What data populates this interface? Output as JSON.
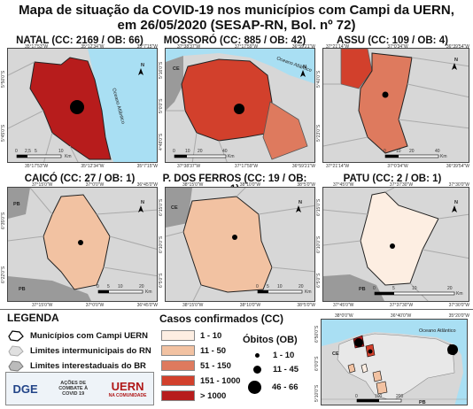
{
  "title_line1": "Mapa de situação da COVID-19 nos municípios com Campi da UERN,",
  "title_line2": "em 26/05/2020 (SESAP-RN, Bol. nº 72)",
  "panels": [
    {
      "title": "NATAL (CC: 2169 / OB: 66)",
      "coords_top": [
        "35°17'53\"W",
        "35°12'34\"W",
        "35°7'15\"W"
      ],
      "coords_bottom": [
        "35°17'53\"W",
        "35°12'34\"W",
        "35°7'15\"W"
      ],
      "coords_left": [
        "5°45'0\"S",
        "5°50'0\"S"
      ],
      "scale": [
        "0",
        "2,5",
        "5",
        "10"
      ],
      "scale_unit": "Km",
      "water_label": "Oceano Atlântico",
      "north": "N",
      "fill": "#b71c1c"
    },
    {
      "title": "MOSSORÓ (CC: 885 / OB: 42)",
      "coords_top": [
        "37°38'37\"W",
        "37°17'59\"W",
        "36°59'21\"W"
      ],
      "coords_bottom": [
        "37°38'37\"W",
        "37°17'59\"W",
        "36°59'21\"W"
      ],
      "coords_left": [
        "4°48'0\"S",
        "5°0'0\"S",
        "5°16'0\"S"
      ],
      "scale": [
        "0",
        "10",
        "20",
        "40"
      ],
      "scale_unit": "Km",
      "water_label": "Oceano Atlântico",
      "state_label": "CE",
      "north": "N",
      "fill": "#d2402c"
    },
    {
      "title": "ASSU (CC: 109 / OB: 4)",
      "coords_top": [
        "37°21'14\"W",
        "37°0'34\"W",
        "36°39'54\"W"
      ],
      "coords_bottom": [
        "37°21'14\"W",
        "37°0'34\"W",
        "36°39'54\"W"
      ],
      "coords_left": [
        "5°23'0\"S",
        "5°40'0\"S"
      ],
      "scale": [
        "0",
        "10",
        "20",
        "40"
      ],
      "scale_unit": "Km",
      "north": "N",
      "fill": "#de7a5e"
    },
    {
      "title": "CAICÓ (CC: 27 / OB: 1)",
      "coords_top": [
        "37°15'0\"W",
        "37°0'0\"W",
        "36°45'0\"W"
      ],
      "coords_bottom": [
        "37°15'0\"W",
        "37°0'0\"W",
        "36°45'0\"W"
      ],
      "coords_left": [
        "6°22'0\"S",
        "6°35'0\"S"
      ],
      "scale": [
        "0",
        "5",
        "10",
        "20"
      ],
      "scale_unit": "Km",
      "state_label": "PB",
      "state_label2": "PB",
      "north": "N",
      "fill": "#f2c2a2"
    },
    {
      "title": "P. DOS FERROS (CC: 19 / OB: 1)",
      "coords_top": [
        "38°15'0\"W",
        "38°10'0\"W",
        "38°5'0\"W"
      ],
      "coords_bottom": [
        "38°15'0\"W",
        "38°10'0\"W",
        "38°5'0\"W"
      ],
      "coords_left": [
        "6°5'0\"S",
        "6°10'0\"S",
        "6°15'0\"S"
      ],
      "scale": [
        "0",
        "5",
        "10",
        "20"
      ],
      "scale_unit": "Km",
      "state_label": "CE",
      "north": "N",
      "fill": "#f2c2a2"
    },
    {
      "title": "PATU (CC: 2 / OB: 1)",
      "coords_top": [
        "37°45'0\"W",
        "37°37'30\"W",
        "37°30'0\"W"
      ],
      "coords_bottom": [
        "37°45'0\"W",
        "37°37'30\"W",
        "37°30'0\"W"
      ],
      "coords_left": [
        "6°5'0\"S",
        "6°10'0\"S",
        "6°15'0\"S"
      ],
      "scale": [
        "0",
        "5",
        "10",
        "20"
      ],
      "scale_unit": "Km",
      "state_label": "PB",
      "north": "N",
      "fill": "#fdeee2"
    }
  ],
  "legend": {
    "title": "LEGENDA",
    "items": [
      "Municípios com Campi UERN",
      "Limites intermunicipais do RN",
      "Limites interestaduais do BR"
    ]
  },
  "cases": {
    "title": "Casos confirmados (CC)",
    "classes": [
      {
        "label": "1 - 10",
        "color": "#fdeee2"
      },
      {
        "label": "11 - 50",
        "color": "#f2c2a2"
      },
      {
        "label": "51 - 150",
        "color": "#de7a5e"
      },
      {
        "label": "151 - 1000",
        "color": "#d2402c"
      },
      {
        "label": "> 1000",
        "color": "#b71c1c"
      }
    ]
  },
  "deaths": {
    "title": "Óbitos (OB)",
    "classes": [
      "1 - 10",
      "11 - 45",
      "46 - 66"
    ]
  },
  "overview": {
    "coords_top": [
      "38°0'0\"W",
      "36°40'0\"W",
      "35°20'0\"W"
    ],
    "coords_left": [
      "5°10'0\"S",
      "6°0'0\"S",
      "6°50'0\"S"
    ],
    "water_label": "Oceano Atlântico",
    "state_ce": "CE",
    "state_pb": "PB",
    "scale": [
      "0",
      "100",
      "200"
    ]
  },
  "logos": {
    "dge": "DGE",
    "acoes": "AÇÕES DE COMBATE À COVID 19",
    "uern": "UERN",
    "uern_sub": "NA COMUNIDADE"
  }
}
